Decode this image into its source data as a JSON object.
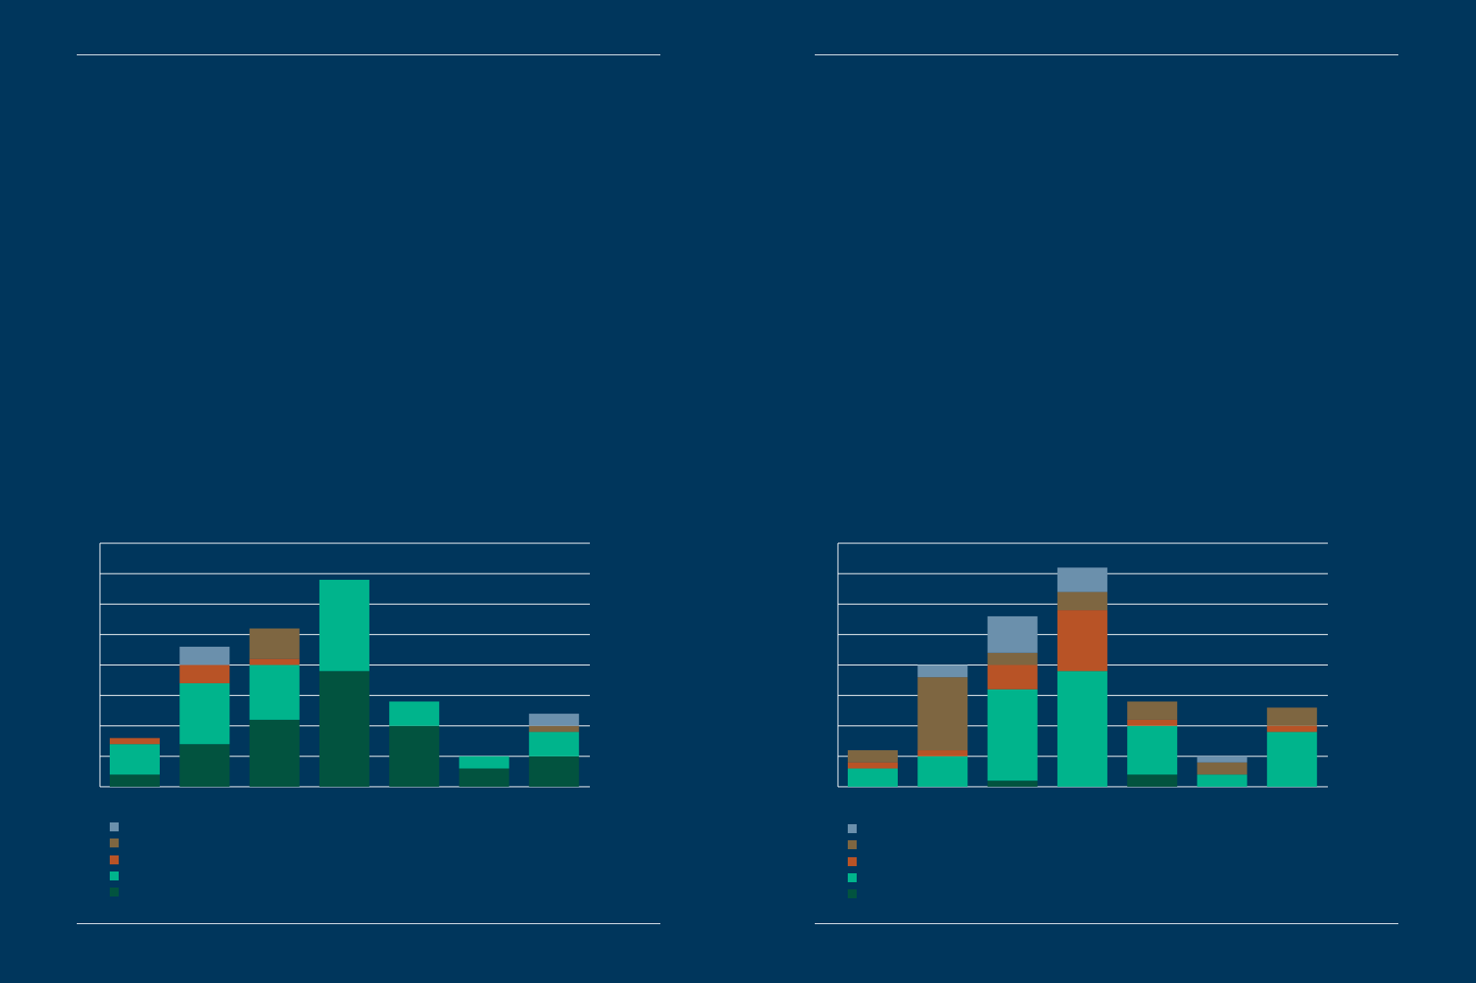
{
  "colors": {
    "background": "#00365c",
    "rule": "#e6ecf2",
    "gridline": "#ffffff"
  },
  "chart_data": [
    {
      "type": "bar",
      "stacked": true,
      "categories": [
        "",
        "",
        "",
        "",
        "",
        "",
        ""
      ],
      "ylim": [
        0,
        8
      ],
      "grid": true,
      "legend_position": "bottom-left",
      "title": "",
      "xlabel": "",
      "ylabel": "",
      "series": [
        {
          "color": "#02533f",
          "values": [
            0.4,
            1.4,
            2.2,
            3.8,
            2.0,
            0.6,
            1.0
          ]
        },
        {
          "color": "#00b48c",
          "values": [
            1.0,
            2.0,
            1.8,
            3.0,
            0.8,
            0.4,
            0.8
          ]
        },
        {
          "color": "#b85326",
          "values": [
            0.2,
            0.6,
            0.2,
            0.0,
            0.0,
            0.0,
            0.0
          ]
        },
        {
          "color": "#7e6641",
          "values": [
            0.0,
            0.0,
            1.0,
            0.0,
            0.0,
            0.0,
            0.2
          ]
        },
        {
          "color": "#6b90ac",
          "values": [
            0.0,
            0.6,
            0.0,
            0.0,
            0.0,
            0.0,
            0.4
          ]
        }
      ]
    },
    {
      "type": "bar",
      "stacked": true,
      "categories": [
        "",
        "",
        "",
        "",
        "",
        "",
        ""
      ],
      "ylim": [
        0,
        8
      ],
      "grid": true,
      "legend_position": "bottom-left",
      "title": "",
      "xlabel": "",
      "ylabel": "",
      "series": [
        {
          "color": "#02533f",
          "values": [
            0.0,
            0.0,
            0.2,
            0.0,
            0.4,
            0.0,
            0.0
          ]
        },
        {
          "color": "#00b48c",
          "values": [
            0.6,
            1.0,
            3.0,
            3.8,
            1.6,
            0.4,
            1.8
          ]
        },
        {
          "color": "#b85326",
          "values": [
            0.2,
            0.2,
            0.8,
            2.0,
            0.2,
            0.0,
            0.2
          ]
        },
        {
          "color": "#7e6641",
          "values": [
            0.4,
            2.4,
            0.4,
            0.6,
            0.6,
            0.4,
            0.6
          ]
        },
        {
          "color": "#6b90ac",
          "values": [
            0.0,
            0.4,
            1.2,
            0.8,
            0.0,
            0.2,
            0.0
          ]
        }
      ]
    }
  ]
}
